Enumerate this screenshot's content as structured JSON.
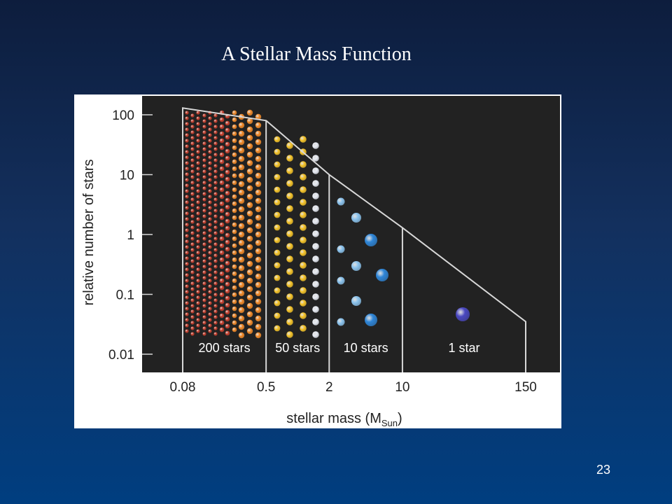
{
  "slide": {
    "title": "A Stellar Mass Function",
    "page_number": "23"
  },
  "colors": {
    "background_top": "#0d1d3d",
    "background_bottom": "#003e80",
    "plot_background": "#222222",
    "outline": "#d8d8d8",
    "star_red": "#c8402e",
    "star_orange": "#f08a2a",
    "star_yellow": "#f5c42a",
    "star_white": "#e8ecf4",
    "star_lightblue": "#8cc4ee",
    "star_blue": "#2f86d8",
    "star_violet": "#4a48c0"
  },
  "chart_data": {
    "type": "bar",
    "xscale": "log",
    "yscale": "log",
    "xlabel": "stellar mass (M",
    "xlabel_subscript": "Sun",
    "xlabel_close": ")",
    "ylabel": "relative number of stars",
    "xlim": [
      0.035,
      400
    ],
    "ylim": [
      0.005,
      200
    ],
    "x_ticks": [
      0.08,
      0.5,
      2,
      10,
      150
    ],
    "x_tick_labels": [
      "0.08",
      "0.5",
      "2",
      "10",
      "150"
    ],
    "y_ticks": [
      100,
      10,
      1,
      0.1,
      0.01
    ],
    "y_tick_labels": [
      "100",
      "10",
      "1",
      "0.1",
      "0.01"
    ],
    "envelope": {
      "x": [
        0.08,
        0.5,
        2,
        10,
        150
      ],
      "y": [
        130,
        80,
        10,
        1.3,
        0.035
      ]
    },
    "bins": [
      {
        "from": 0.08,
        "to": 0.5,
        "label": "200 stars",
        "count": 200
      },
      {
        "from": 0.5,
        "to": 2,
        "label": "50 stars",
        "count": 50
      },
      {
        "from": 2,
        "to": 10,
        "label": "10 stars",
        "count": 10
      },
      {
        "from": 10,
        "to": 150,
        "label": "1 star",
        "count": 1
      }
    ]
  }
}
